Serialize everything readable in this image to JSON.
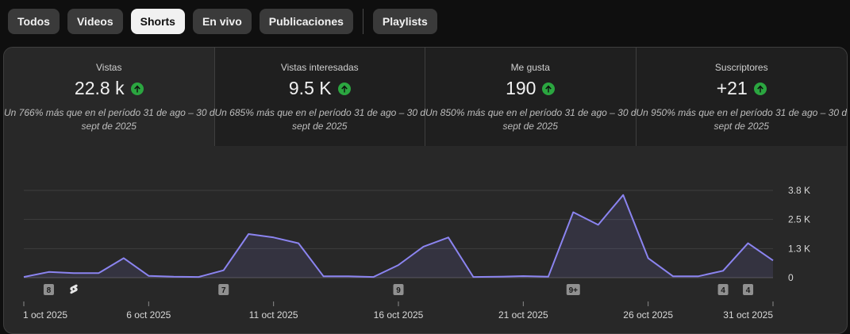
{
  "tabs": [
    {
      "label": "Todos",
      "active": false
    },
    {
      "label": "Videos",
      "active": false
    },
    {
      "label": "Shorts",
      "active": true
    },
    {
      "label": "En vivo",
      "active": false
    },
    {
      "label": "Publicaciones",
      "active": false
    },
    {
      "label": "Playlists",
      "active": false
    }
  ],
  "metrics": [
    {
      "label": "Vistas",
      "value": "22.8 k",
      "note_line1": "Un 766% más que en el período 31 de ago – 30 de",
      "note_line2": "sept de 2025"
    },
    {
      "label": "Vistas interesadas",
      "value": "9.5 K",
      "note_line1": "Un 685% más que en el período 31 de ago – 30 de",
      "note_line2": "sept de 2025"
    },
    {
      "label": "Me gusta",
      "value": "190",
      "note_line1": "Un 850% más que en el período 31 de ago – 30 de",
      "note_line2": "sept de 2025"
    },
    {
      "label": "Suscriptores",
      "value": "+21",
      "note_line1": "Un 950% más que en el período 31 de ago – 30 de",
      "note_line2": "sept de 2025"
    }
  ],
  "colors": {
    "accent_line": "#8b84f0",
    "trend_up": "#2ba640"
  },
  "icons": {
    "trend": "arrow-up-circle-icon",
    "shorts": "shorts-logo-icon"
  },
  "chart_data": {
    "type": "area",
    "x": [
      "1 oct",
      "2 oct",
      "3 oct",
      "4 oct",
      "5 oct",
      "6 oct",
      "7 oct",
      "8 oct",
      "9 oct",
      "10 oct",
      "11 oct",
      "12 oct",
      "13 oct",
      "14 oct",
      "15 oct",
      "16 oct",
      "17 oct",
      "18 oct",
      "19 oct",
      "20 oct",
      "21 oct",
      "22 oct",
      "23 oct",
      "24 oct",
      "25 oct",
      "26 oct",
      "27 oct",
      "28 oct",
      "29 oct",
      "30 oct",
      "31 oct"
    ],
    "values": [
      30,
      250,
      200,
      200,
      850,
      80,
      40,
      30,
      320,
      1900,
      1750,
      1500,
      60,
      60,
      30,
      550,
      1350,
      1750,
      30,
      40,
      70,
      40,
      2850,
      2300,
      3600,
      850,
      60,
      60,
      300,
      1500,
      750
    ],
    "y_ticks": [
      "0",
      "1.3 K",
      "2.5 K",
      "3.8 K"
    ],
    "y_tick_values": [
      0,
      1267,
      2533,
      3800
    ],
    "ylim": [
      0,
      3800
    ],
    "x_tick_labels": [
      "1 oct 2025",
      "6 oct 2025",
      "11 oct 2025",
      "16 oct 2025",
      "21 oct 2025",
      "26 oct 2025",
      "31 oct 2025"
    ],
    "x_tick_index": [
      0,
      5,
      10,
      15,
      20,
      25,
      30
    ],
    "grid": true,
    "upload_markers": [
      {
        "index": 1,
        "label": "8"
      },
      {
        "index": 2,
        "label": "",
        "icon": "shorts-logo-icon"
      },
      {
        "index": 8,
        "label": "7"
      },
      {
        "index": 15,
        "label": "9"
      },
      {
        "index": 22,
        "label": "9+"
      },
      {
        "index": 28,
        "label": "4"
      },
      {
        "index": 29,
        "label": "4"
      }
    ]
  }
}
